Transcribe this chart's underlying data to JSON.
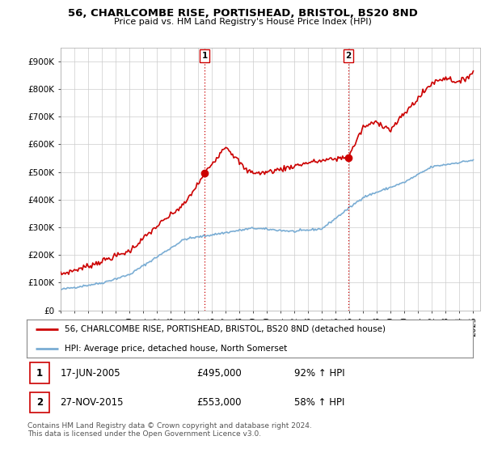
{
  "title": "56, CHARLCOMBE RISE, PORTISHEAD, BRISTOL, BS20 8ND",
  "subtitle": "Price paid vs. HM Land Registry's House Price Index (HPI)",
  "ylim": [
    0,
    950000
  ],
  "xlim_start": 1995,
  "xlim_end": 2025.5,
  "sale1_date": 2005.46,
  "sale1_price": 495000,
  "sale1_label": "1",
  "sale2_date": 2015.91,
  "sale2_price": 553000,
  "sale2_label": "2",
  "legend_line1": "56, CHARLCOMBE RISE, PORTISHEAD, BRISTOL, BS20 8ND (detached house)",
  "legend_line2": "HPI: Average price, detached house, North Somerset",
  "table_row1": [
    "1",
    "17-JUN-2005",
    "£495,000",
    "92% ↑ HPI"
  ],
  "table_row2": [
    "2",
    "27-NOV-2015",
    "£553,000",
    "58% ↑ HPI"
  ],
  "footnote": "Contains HM Land Registry data © Crown copyright and database right 2024.\nThis data is licensed under the Open Government Licence v3.0.",
  "line_color_red": "#cc0000",
  "line_color_blue": "#7aadd4",
  "background_color": "#ffffff",
  "grid_color": "#cccccc"
}
